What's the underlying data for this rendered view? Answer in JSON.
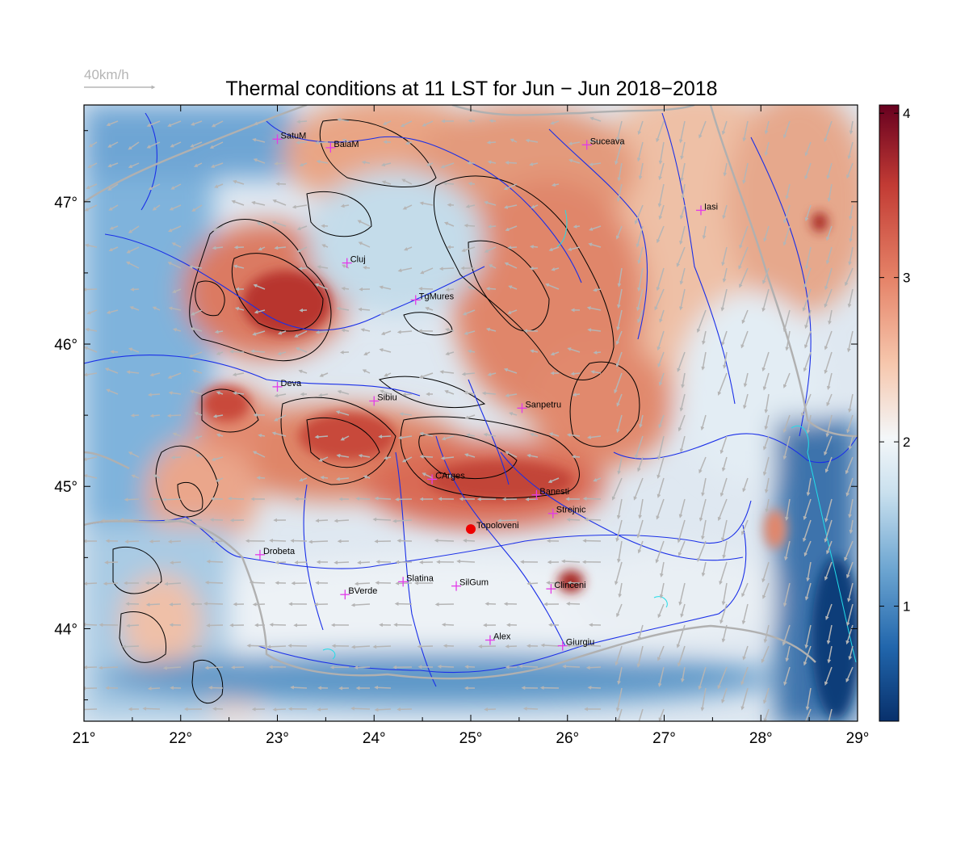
{
  "title": "Thermal conditions at 11 LST for Jun − Jun  2018−2018",
  "wind_legend": {
    "label": "40km/h",
    "color": "#b5b5b5"
  },
  "axes": {
    "lon_range": [
      21,
      29
    ],
    "lat_range": [
      43.35,
      47.68
    ],
    "x_ticks": [
      {
        "value": 21,
        "label": "21°"
      },
      {
        "value": 22,
        "label": "22°"
      },
      {
        "value": 23,
        "label": "23°"
      },
      {
        "value": 24,
        "label": "24°"
      },
      {
        "value": 25,
        "label": "25°"
      },
      {
        "value": 26,
        "label": "26°"
      },
      {
        "value": 27,
        "label": "27°"
      },
      {
        "value": 28,
        "label": "28°"
      },
      {
        "value": 29,
        "label": "29°"
      }
    ],
    "y_ticks": [
      {
        "value": 44,
        "label": "44°"
      },
      {
        "value": 45,
        "label": "45°"
      },
      {
        "value": 46,
        "label": "46°"
      },
      {
        "value": 47,
        "label": "47°"
      }
    ]
  },
  "colorbar": {
    "range": [
      0.3,
      4.05
    ],
    "ticks": [
      {
        "value": 1,
        "label": "1"
      },
      {
        "value": 2,
        "label": "2"
      },
      {
        "value": 3,
        "label": "3"
      },
      {
        "value": 4,
        "label": "4"
      }
    ],
    "stops": [
      "#08306b",
      "#2166ac",
      "#6fa7d2",
      "#c9e0ee",
      "#f4f7f9",
      "#f6c7ad",
      "#e58267",
      "#c23b34",
      "#67001f"
    ]
  },
  "colors": {
    "river": "#1a2fe8",
    "border": "#b0b0b0",
    "contour": "#000000",
    "city_marker": "#e23be8",
    "highlight_marker": "#ee0000",
    "coast": "#22dde8"
  },
  "cities": [
    {
      "name": "SatuM",
      "lon": 23.0,
      "lat": 47.44
    },
    {
      "name": "BaiaM",
      "lon": 23.55,
      "lat": 47.38
    },
    {
      "name": "Suceava",
      "lon": 26.2,
      "lat": 47.4
    },
    {
      "name": "Iasi",
      "lon": 27.38,
      "lat": 46.94
    },
    {
      "name": "Cluj",
      "lon": 23.72,
      "lat": 46.57
    },
    {
      "name": "TgMures",
      "lon": 24.43,
      "lat": 46.31
    },
    {
      "name": "Deva",
      "lon": 23.0,
      "lat": 45.7
    },
    {
      "name": "Sibiu",
      "lon": 24.0,
      "lat": 45.6
    },
    {
      "name": "Sanpetru",
      "lon": 25.53,
      "lat": 45.55
    },
    {
      "name": "CArges",
      "lon": 24.6,
      "lat": 45.05
    },
    {
      "name": "Banesti",
      "lon": 25.68,
      "lat": 44.94
    },
    {
      "name": "Strejnic",
      "lon": 25.85,
      "lat": 44.81
    },
    {
      "name": "Drobeta",
      "lon": 22.82,
      "lat": 44.52
    },
    {
      "name": "Slatina",
      "lon": 24.3,
      "lat": 44.33
    },
    {
      "name": "SilGum",
      "lon": 24.85,
      "lat": 44.3
    },
    {
      "name": "Clinceni",
      "lon": 25.83,
      "lat": 44.28
    },
    {
      "name": "BVerde",
      "lon": 23.7,
      "lat": 44.24
    },
    {
      "name": "Alex",
      "lon": 25.2,
      "lat": 43.92
    },
    {
      "name": "Giurgiu",
      "lon": 25.95,
      "lat": 43.88
    }
  ],
  "highlight": {
    "name": "Topoloveni",
    "lon": 25.0,
    "lat": 44.7
  }
}
